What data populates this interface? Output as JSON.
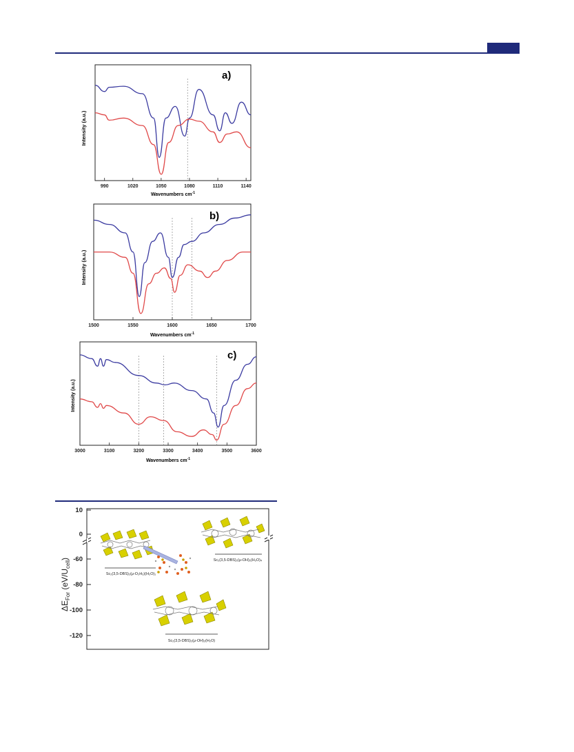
{
  "colors": {
    "header": "#1f2a7a",
    "top_series": "#3a3aa0",
    "bottom_series": "#e04848",
    "guide": "#888888"
  },
  "charts": [
    {
      "panel_label": "a)",
      "xlabel": "Wavenumbers cm",
      "xlabel_sup": "-1",
      "ylabel": "Intensity (a.u.)",
      "xticks": [
        "990",
        "1020",
        "1050",
        "1080",
        "1110",
        "1140"
      ]
    },
    {
      "panel_label": "b)",
      "xlabel": "Wavenumbers cm",
      "xlabel_sup": "-1",
      "ylabel": "Intensity (a.u.)",
      "xticks": [
        "1500",
        "1550",
        "1600",
        "1650",
        "1700"
      ]
    },
    {
      "panel_label": "c)",
      "xlabel": "Wavenumbers cm",
      "xlabel_sup": "-1",
      "ylabel": "Intensity (a.u.)",
      "xticks": [
        "3000",
        "3100",
        "3200",
        "3300",
        "3400",
        "3500",
        "3600"
      ]
    }
  ],
  "energy_plot": {
    "ylabel_main": "ΔE",
    "ylabel_sub": "For",
    "ylabel_unit": " (eV/U",
    "ylabel_unit_sub": "cell",
    "ylabel_close": ")",
    "yticks": [
      "10",
      "0",
      "-60",
      "-80",
      "-100",
      "-120"
    ],
    "structures": [
      {
        "formula": "Sc₂(3,5-DBS)₂(μ-O₂H₃)(H₂O)₁"
      },
      {
        "formula": "Sc₂(3,5-DBS)₂(μ-OH)₂(H₂O)₄"
      },
      {
        "formula": "Sc₂(3,5-DBS)₂(μ-OH)₂(H₂O)"
      }
    ]
  },
  "chart_data": [
    {
      "type": "line",
      "title": "a)",
      "xlabel": "Wavenumbers cm-1",
      "ylabel": "Intensity (a.u.)",
      "xlim": [
        980,
        1145
      ],
      "series": [
        {
          "x": [
            980,
            990,
            995,
            1010,
            1030,
            1042,
            1048,
            1055,
            1065,
            1075,
            1080,
            1090,
            1105,
            1112,
            1118,
            1125,
            1135,
            1145
          ],
          "y": [
            0.86,
            0.8,
            0.84,
            0.85,
            0.78,
            0.55,
            0.18,
            0.55,
            0.66,
            0.38,
            0.55,
            0.82,
            0.58,
            0.43,
            0.6,
            0.5,
            0.7,
            0.58
          ]
        },
        {
          "x": [
            980,
            990,
            995,
            1010,
            1030,
            1042,
            1050,
            1058,
            1068,
            1080,
            1090,
            1105,
            1112,
            1120,
            1130,
            1145
          ],
          "y": [
            0.6,
            0.58,
            0.53,
            0.55,
            0.48,
            0.3,
            0.02,
            0.32,
            0.48,
            0.54,
            0.52,
            0.42,
            0.32,
            0.4,
            0.42,
            0.27
          ]
        }
      ]
    },
    {
      "type": "line",
      "title": "b)",
      "xlabel": "Wavenumbers cm-1",
      "ylabel": "Intensity (a.u.)",
      "xlim": [
        1500,
        1700
      ],
      "series": [
        {
          "x": [
            1500,
            1520,
            1540,
            1550,
            1558,
            1565,
            1575,
            1585,
            1595,
            1600,
            1608,
            1615,
            1625,
            1640,
            1660,
            1680,
            1700
          ],
          "y": [
            0.9,
            0.86,
            0.78,
            0.6,
            0.18,
            0.5,
            0.7,
            0.78,
            0.55,
            0.36,
            0.55,
            0.67,
            0.7,
            0.78,
            0.86,
            0.92,
            0.95
          ]
        },
        {
          "x": [
            1500,
            1520,
            1540,
            1550,
            1560,
            1570,
            1580,
            1590,
            1598,
            1603,
            1610,
            1620,
            1635,
            1645,
            1655,
            1670,
            1690,
            1700
          ],
          "y": [
            0.6,
            0.6,
            0.55,
            0.4,
            0.02,
            0.3,
            0.4,
            0.45,
            0.35,
            0.22,
            0.38,
            0.48,
            0.42,
            0.36,
            0.42,
            0.52,
            0.6,
            0.6
          ]
        }
      ]
    },
    {
      "type": "line",
      "title": "c)",
      "xlabel": "Wavenumbers cm-1",
      "ylabel": "Intensity (a.u.)",
      "xlim": [
        3000,
        3600
      ],
      "series": [
        {
          "x": [
            3000,
            3040,
            3060,
            3070,
            3080,
            3090,
            3120,
            3200,
            3260,
            3290,
            3320,
            3380,
            3430,
            3455,
            3470,
            3490,
            3530,
            3570,
            3600
          ],
          "y": [
            0.92,
            0.88,
            0.8,
            0.88,
            0.8,
            0.87,
            0.84,
            0.7,
            0.62,
            0.6,
            0.62,
            0.54,
            0.45,
            0.3,
            0.15,
            0.38,
            0.65,
            0.82,
            0.9
          ]
        },
        {
          "x": [
            3000,
            3040,
            3060,
            3070,
            3080,
            3090,
            3150,
            3200,
            3240,
            3285,
            3330,
            3380,
            3420,
            3450,
            3465,
            3490,
            3530,
            3570,
            3600
          ],
          "y": [
            0.45,
            0.42,
            0.36,
            0.4,
            0.35,
            0.38,
            0.3,
            0.18,
            0.26,
            0.22,
            0.1,
            0.05,
            0.12,
            0.07,
            0.01,
            0.18,
            0.38,
            0.56,
            0.62
          ]
        }
      ]
    }
  ]
}
